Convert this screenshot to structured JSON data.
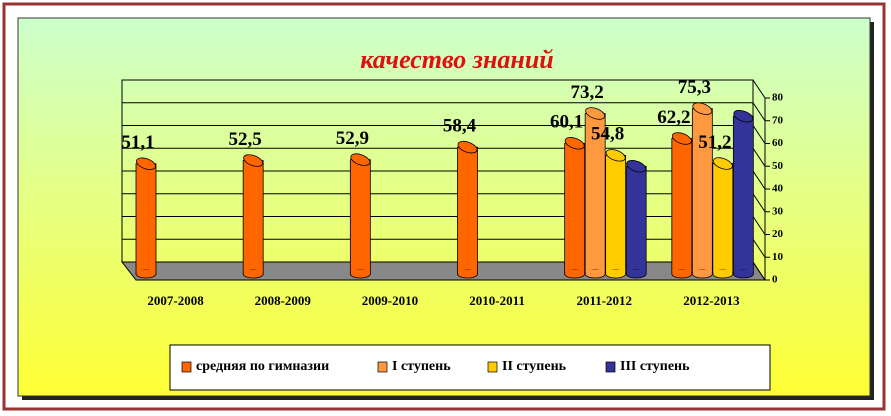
{
  "chart_data": {
    "type": "bar",
    "title": "качество знаний",
    "categories": [
      "2007-2008",
      "2008-2009",
      "2009-2010",
      "2010-2011",
      "2011-2012",
      "2012-2013"
    ],
    "series": [
      {
        "name": "средняя по гимназии",
        "color": "#ff6600",
        "values": [
          51.1,
          52.5,
          52.9,
          58.4,
          60.1,
          62.2
        ],
        "value_labels": [
          "51,1",
          "52,5",
          "52,9",
          "58,4",
          "60,1",
          "62,2"
        ]
      },
      {
        "name": "I ступень",
        "color": "#ff9940",
        "values": [
          null,
          null,
          null,
          null,
          73.2,
          75.3
        ],
        "value_labels": [
          null,
          null,
          null,
          null,
          "73,2",
          "75,3"
        ]
      },
      {
        "name": "II ступень",
        "color": "#ffcc00",
        "values": [
          null,
          null,
          null,
          null,
          54.8,
          51.2
        ],
        "value_labels": [
          null,
          null,
          null,
          null,
          "54,8",
          "51,2"
        ]
      },
      {
        "name": "III ступень",
        "color": "#333399",
        "values": [
          null,
          null,
          null,
          null,
          50,
          72
        ]
      }
    ],
    "ylim": [
      0,
      80
    ],
    "yticks": [
      0,
      10,
      20,
      30,
      40,
      50,
      60,
      70,
      80
    ],
    "grid": true,
    "legend": "bottom"
  }
}
